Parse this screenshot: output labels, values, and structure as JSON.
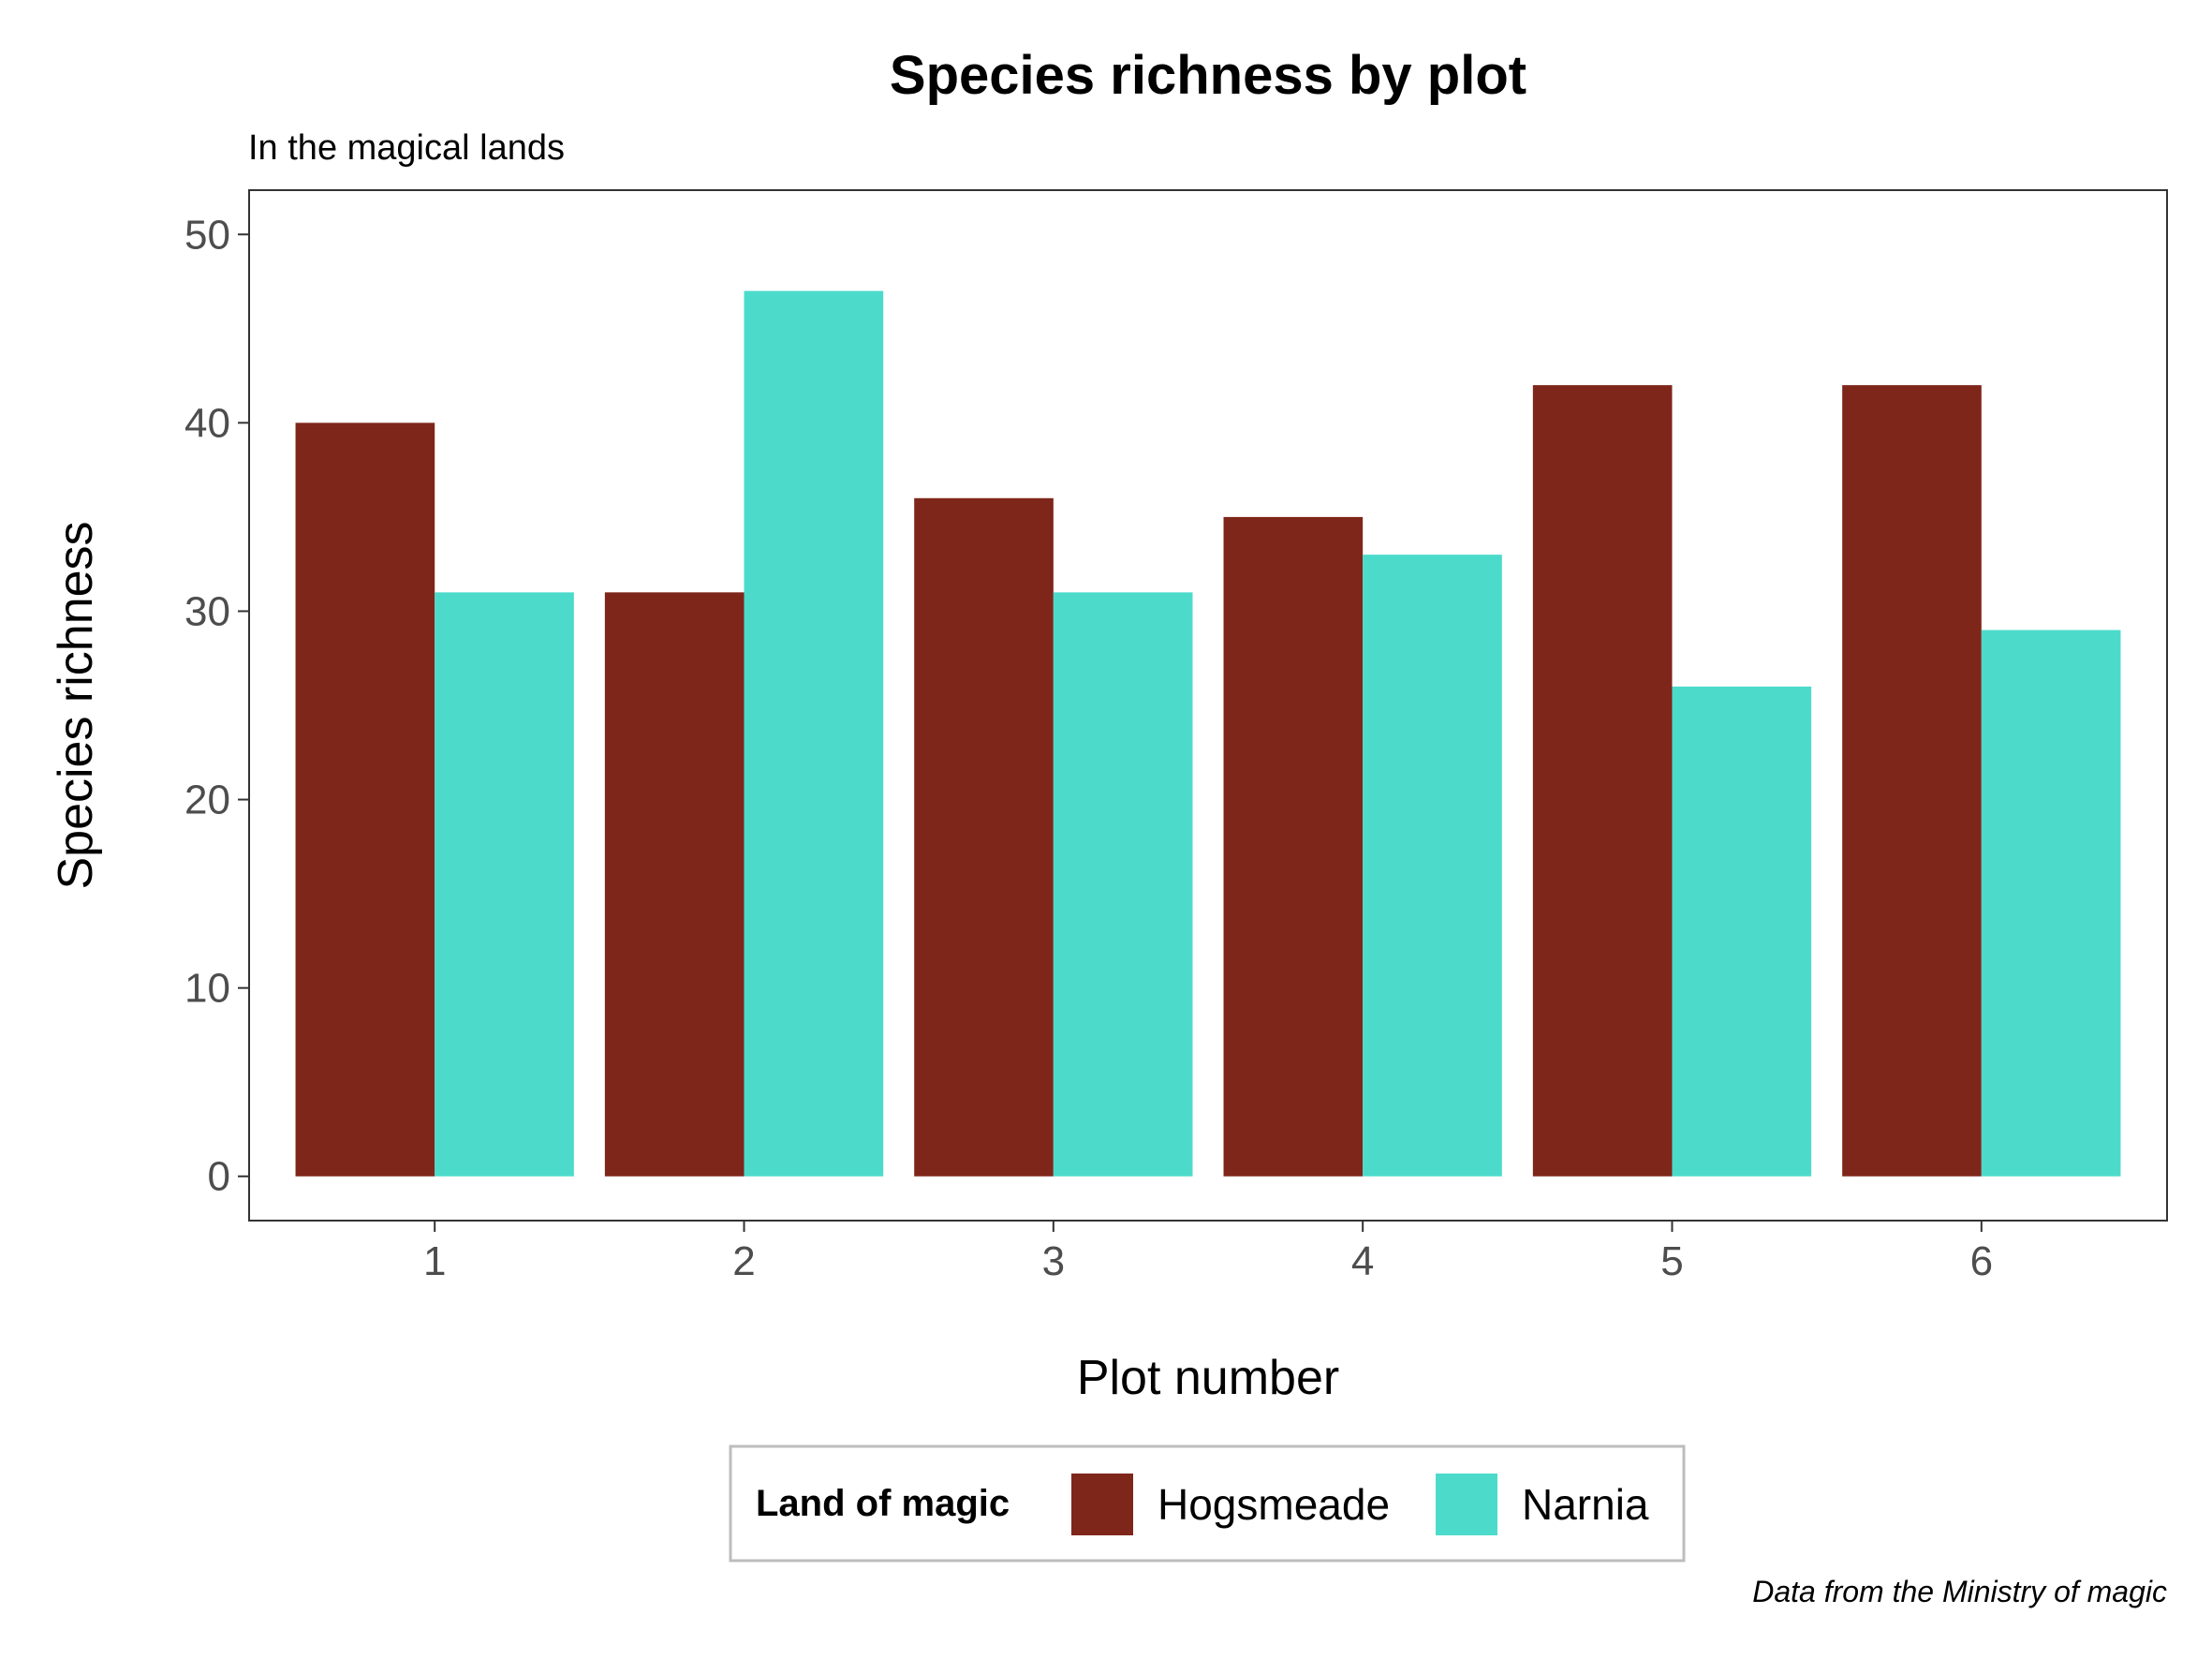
{
  "chart_data": {
    "type": "bar",
    "title": "Species richness by plot",
    "subtitle": "In the magical lands",
    "xlabel": "Plot number",
    "ylabel": "Species richness",
    "caption": "Data from the Ministry of magic",
    "categories": [
      "1",
      "2",
      "3",
      "4",
      "5",
      "6"
    ],
    "series": [
      {
        "name": "Hogsmeade",
        "color": "#7f261a",
        "values": [
          40,
          31,
          36,
          35,
          42,
          42
        ]
      },
      {
        "name": "Narnia",
        "color": "#4cdbcb",
        "values": [
          31,
          47,
          31,
          33,
          26,
          29
        ]
      }
    ],
    "ylim": [
      -2.35,
      52.35
    ],
    "yticks": [
      "0",
      "10",
      "20",
      "30",
      "40",
      "50"
    ],
    "grid": false,
    "legend": {
      "title": "Land of magic",
      "position": "bottom"
    }
  }
}
